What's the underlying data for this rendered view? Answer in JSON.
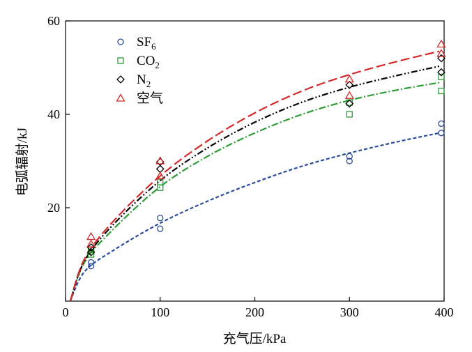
{
  "chart_data": {
    "type": "scatter",
    "title": "",
    "xlabel": "充气压/kPa",
    "ylabel": "电弧辐射/kJ",
    "xlim": [
      0,
      400
    ],
    "ylim": [
      0,
      60
    ],
    "x_ticks": [
      0,
      100,
      200,
      300,
      400
    ],
    "y_ticks": [
      20,
      40,
      60
    ],
    "grid": false,
    "legend": "top-left",
    "series": [
      {
        "name": "SF",
        "name_sub": "6",
        "marker": "circle",
        "color": "#2a4b9b",
        "points": [
          [
            27,
            7.5
          ],
          [
            27,
            8.3
          ],
          [
            100,
            15.5
          ],
          [
            100,
            17.8
          ],
          [
            300,
            30
          ],
          [
            300,
            31
          ],
          [
            397,
            36
          ],
          [
            397,
            38
          ]
        ],
        "fit": [
          [
            5,
            0
          ],
          [
            20,
            6.3
          ],
          [
            50,
            10.8
          ],
          [
            100,
            16.7
          ],
          [
            150,
            21.4
          ],
          [
            200,
            25.4
          ],
          [
            250,
            28.9
          ],
          [
            300,
            31.7
          ],
          [
            350,
            34.1
          ],
          [
            395,
            36
          ]
        ],
        "dash": "5,3"
      },
      {
        "name": "CO",
        "name_sub": "2",
        "marker": "square",
        "color": "#2e9c36",
        "points": [
          [
            27,
            10
          ],
          [
            27,
            11
          ],
          [
            100,
            24.3
          ],
          [
            100,
            25.5
          ],
          [
            300,
            40
          ],
          [
            300,
            42.5
          ],
          [
            397,
            45
          ],
          [
            397,
            48
          ]
        ],
        "fit": [
          [
            5,
            0
          ],
          [
            20,
            8.3
          ],
          [
            50,
            15.3
          ],
          [
            100,
            24.5
          ],
          [
            150,
            31
          ],
          [
            200,
            36
          ],
          [
            250,
            40
          ],
          [
            300,
            43
          ],
          [
            350,
            45.2
          ],
          [
            395,
            46.8
          ]
        ],
        "dash": "10,3,2,3"
      },
      {
        "name": "N",
        "name_sub": "2",
        "marker": "diamond",
        "color": "#000000",
        "points": [
          [
            27,
            10.5
          ],
          [
            27,
            11.5
          ],
          [
            100,
            28.3
          ],
          [
            100,
            29.8
          ],
          [
            300,
            42.3
          ],
          [
            300,
            46.3
          ],
          [
            397,
            49
          ],
          [
            397,
            52
          ]
        ],
        "fit": [
          [
            5,
            0
          ],
          [
            20,
            8.6
          ],
          [
            50,
            16.3
          ],
          [
            100,
            25.8
          ],
          [
            150,
            32.8
          ],
          [
            200,
            38.3
          ],
          [
            250,
            42.6
          ],
          [
            300,
            45.8
          ],
          [
            350,
            48.3
          ],
          [
            395,
            50.3
          ]
        ],
        "dash": "9,3,2,3,2,3"
      },
      {
        "name": "空气",
        "name_sub": "",
        "marker": "triangle",
        "color": "#d42a2a",
        "points": [
          [
            27,
            12.2
          ],
          [
            27,
            13.8
          ],
          [
            100,
            26.8
          ],
          [
            100,
            30
          ],
          [
            300,
            44
          ],
          [
            300,
            47.5
          ],
          [
            397,
            53
          ],
          [
            397,
            55
          ]
        ],
        "fit": [
          [
            5,
            0
          ],
          [
            20,
            9
          ],
          [
            50,
            17
          ],
          [
            100,
            26.8
          ],
          [
            150,
            34.3
          ],
          [
            200,
            40.3
          ],
          [
            250,
            45
          ],
          [
            300,
            48.5
          ],
          [
            350,
            51.3
          ],
          [
            395,
            53.5
          ]
        ],
        "dash": "13,5"
      }
    ]
  }
}
